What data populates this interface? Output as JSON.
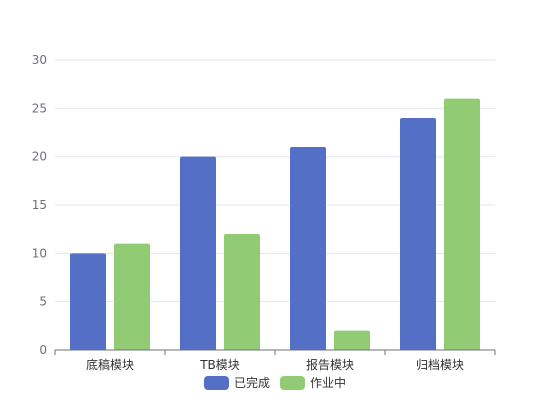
{
  "chart_data": {
    "type": "bar",
    "title": "",
    "xlabel": "",
    "ylabel": "",
    "categories": [
      "底稿模块",
      "TB模块",
      "报告模块",
      "归档模块"
    ],
    "series": [
      {
        "name": "已完成",
        "values": [
          10,
          20,
          21,
          24
        ],
        "color": "#5470c6"
      },
      {
        "name": "作业中",
        "values": [
          11,
          12,
          2,
          26
        ],
        "color": "#91cc75"
      }
    ],
    "ylim": [
      0,
      30
    ],
    "yticks": [
      0,
      5,
      10,
      15,
      20,
      25,
      30
    ],
    "grid": true,
    "legend_position": "bottom-center"
  }
}
